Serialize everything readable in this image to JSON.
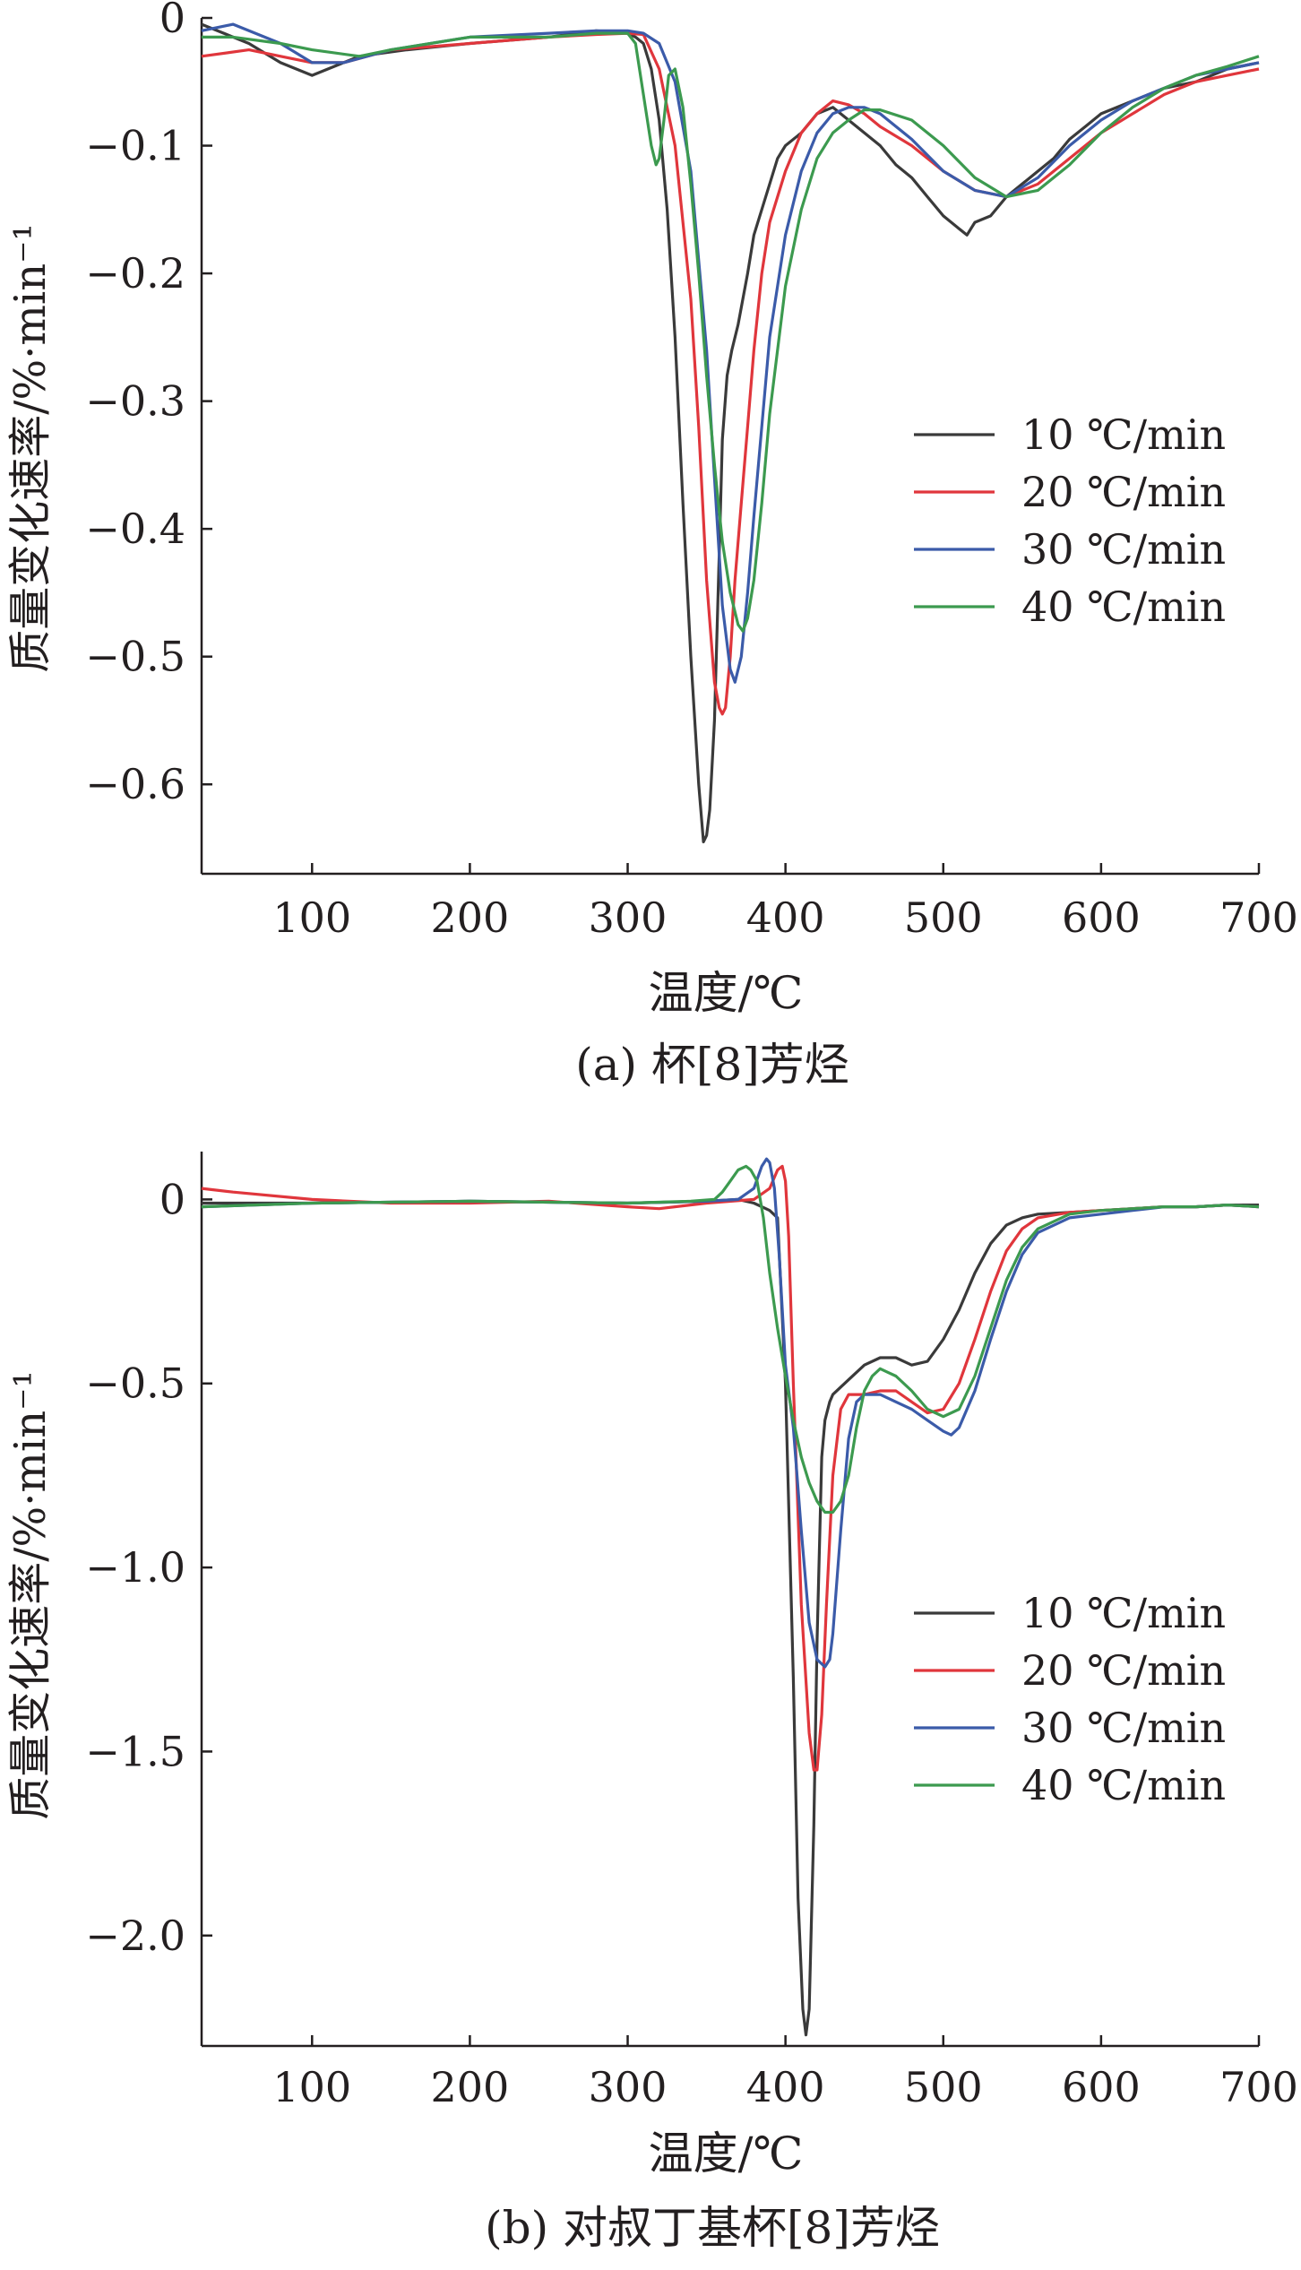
{
  "chart_data": [
    {
      "type": "line",
      "caption": "(a) 杯[8]芳烃",
      "xlabel": "温度/℃",
      "ylabel": "质量变化速率/%·min⁻¹",
      "xlim": [
        30,
        700
      ],
      "ylim": [
        -0.67,
        0.0
      ],
      "xticks": [
        100,
        200,
        300,
        400,
        500,
        600,
        700
      ],
      "xtick_labels": [
        "100",
        "200",
        "300",
        "400",
        "500",
        "600",
        "700"
      ],
      "yticks": [
        0,
        -0.1,
        -0.2,
        -0.3,
        -0.4,
        -0.5,
        -0.6
      ],
      "ytick_labels": [
        "0",
        "−0.1",
        "−0.2",
        "−0.3",
        "−0.4",
        "−0.5",
        "−0.6"
      ],
      "legend_position": "right-middle",
      "series": [
        {
          "name": "10 ℃/min",
          "color": "#3a3a3a",
          "x": [
            30,
            60,
            80,
            100,
            110,
            130,
            160,
            200,
            250,
            280,
            300,
            305,
            310,
            315,
            320,
            325,
            330,
            335,
            340,
            345,
            348,
            350,
            352,
            355,
            358,
            360,
            363,
            366,
            370,
            373,
            376,
            380,
            385,
            390,
            395,
            400,
            410,
            420,
            430,
            440,
            450,
            460,
            470,
            480,
            490,
            500,
            510,
            515,
            520,
            530,
            540,
            550,
            560,
            570,
            580,
            590,
            600,
            620,
            640,
            660,
            680,
            700
          ],
          "y": [
            -0.005,
            -0.02,
            -0.035,
            -0.045,
            -0.04,
            -0.03,
            -0.025,
            -0.02,
            -0.015,
            -0.01,
            -0.012,
            -0.015,
            -0.02,
            -0.04,
            -0.08,
            -0.15,
            -0.25,
            -0.38,
            -0.5,
            -0.6,
            -0.645,
            -0.64,
            -0.62,
            -0.55,
            -0.42,
            -0.33,
            -0.28,
            -0.26,
            -0.24,
            -0.22,
            -0.2,
            -0.17,
            -0.15,
            -0.13,
            -0.11,
            -0.1,
            -0.09,
            -0.075,
            -0.07,
            -0.08,
            -0.09,
            -0.1,
            -0.115,
            -0.125,
            -0.14,
            -0.155,
            -0.165,
            -0.17,
            -0.16,
            -0.155,
            -0.14,
            -0.13,
            -0.12,
            -0.11,
            -0.095,
            -0.085,
            -0.075,
            -0.065,
            -0.055,
            -0.05,
            -0.04,
            -0.035
          ]
        },
        {
          "name": "20 ℃/min",
          "color": "#e0363c",
          "x": [
            30,
            60,
            80,
            100,
            120,
            150,
            200,
            250,
            280,
            300,
            310,
            320,
            330,
            340,
            345,
            350,
            355,
            358,
            360,
            362,
            365,
            368,
            372,
            376,
            380,
            385,
            390,
            400,
            410,
            420,
            430,
            440,
            450,
            460,
            480,
            500,
            520,
            540,
            560,
            580,
            600,
            620,
            640,
            660,
            680,
            700
          ],
          "y": [
            -0.03,
            -0.025,
            -0.03,
            -0.035,
            -0.035,
            -0.025,
            -0.02,
            -0.015,
            -0.013,
            -0.012,
            -0.013,
            -0.04,
            -0.1,
            -0.22,
            -0.32,
            -0.44,
            -0.52,
            -0.54,
            -0.545,
            -0.54,
            -0.5,
            -0.44,
            -0.38,
            -0.32,
            -0.26,
            -0.2,
            -0.16,
            -0.12,
            -0.09,
            -0.075,
            -0.065,
            -0.068,
            -0.075,
            -0.085,
            -0.1,
            -0.12,
            -0.135,
            -0.14,
            -0.13,
            -0.11,
            -0.09,
            -0.075,
            -0.06,
            -0.05,
            -0.045,
            -0.04
          ]
        },
        {
          "name": "30 ℃/min",
          "color": "#3b5ba9",
          "x": [
            30,
            50,
            80,
            100,
            120,
            150,
            200,
            250,
            280,
            300,
            310,
            320,
            330,
            340,
            350,
            355,
            360,
            365,
            368,
            372,
            376,
            380,
            385,
            390,
            400,
            410,
            420,
            430,
            440,
            450,
            460,
            480,
            500,
            520,
            540,
            560,
            580,
            600,
            620,
            640,
            660,
            680,
            700
          ],
          "y": [
            -0.01,
            -0.005,
            -0.02,
            -0.035,
            -0.035,
            -0.025,
            -0.015,
            -0.012,
            -0.01,
            -0.01,
            -0.012,
            -0.02,
            -0.05,
            -0.12,
            -0.26,
            -0.36,
            -0.46,
            -0.51,
            -0.52,
            -0.5,
            -0.45,
            -0.39,
            -0.32,
            -0.25,
            -0.17,
            -0.12,
            -0.09,
            -0.075,
            -0.07,
            -0.07,
            -0.075,
            -0.095,
            -0.12,
            -0.135,
            -0.14,
            -0.125,
            -0.1,
            -0.08,
            -0.065,
            -0.055,
            -0.045,
            -0.04,
            -0.035
          ]
        },
        {
          "name": "40 ℃/min",
          "color": "#3c9a4f",
          "x": [
            30,
            50,
            80,
            100,
            130,
            150,
            200,
            250,
            280,
            300,
            305,
            310,
            315,
            318,
            320,
            323,
            326,
            330,
            335,
            340,
            345,
            350,
            355,
            360,
            365,
            370,
            373,
            376,
            380,
            385,
            390,
            400,
            410,
            420,
            430,
            440,
            450,
            460,
            480,
            500,
            520,
            540,
            560,
            580,
            600,
            620,
            640,
            660,
            680,
            700
          ],
          "y": [
            -0.015,
            -0.015,
            -0.02,
            -0.025,
            -0.03,
            -0.025,
            -0.015,
            -0.015,
            -0.012,
            -0.012,
            -0.02,
            -0.06,
            -0.1,
            -0.115,
            -0.11,
            -0.08,
            -0.045,
            -0.04,
            -0.07,
            -0.13,
            -0.2,
            -0.28,
            -0.35,
            -0.41,
            -0.45,
            -0.475,
            -0.48,
            -0.47,
            -0.44,
            -0.38,
            -0.31,
            -0.21,
            -0.15,
            -0.11,
            -0.09,
            -0.08,
            -0.072,
            -0.072,
            -0.08,
            -0.1,
            -0.125,
            -0.14,
            -0.135,
            -0.115,
            -0.09,
            -0.07,
            -0.055,
            -0.045,
            -0.038,
            -0.03
          ]
        }
      ]
    },
    {
      "type": "line",
      "caption": "(b) 对叔丁基杯[8]芳烃",
      "xlabel": "温度/℃",
      "ylabel": "质量变化速率/%·min⁻¹",
      "xlim": [
        30,
        700
      ],
      "ylim": [
        -2.3,
        0.13
      ],
      "xticks": [
        100,
        200,
        300,
        400,
        500,
        600,
        700
      ],
      "xtick_labels": [
        "100",
        "200",
        "300",
        "400",
        "500",
        "600",
        "700"
      ],
      "yticks": [
        0,
        -0.5,
        -1.0,
        -1.5,
        -2.0
      ],
      "ytick_labels": [
        "0",
        "−0.5",
        "−1.0",
        "−1.5",
        "−2.0"
      ],
      "legend_position": "right-middle",
      "series": [
        {
          "name": "10 ℃/min",
          "color": "#3a3a3a",
          "x": [
            30,
            100,
            200,
            300,
            350,
            370,
            380,
            385,
            390,
            395,
            400,
            405,
            408,
            411,
            413,
            415,
            418,
            420,
            423,
            425,
            428,
            430,
            440,
            450,
            460,
            470,
            480,
            490,
            500,
            510,
            520,
            530,
            540,
            550,
            560,
            580,
            600,
            620,
            640,
            660,
            680,
            700
          ],
          "y": [
            -0.01,
            -0.01,
            -0.005,
            -0.01,
            -0.005,
            0.0,
            -0.01,
            -0.02,
            -0.03,
            -0.05,
            -0.5,
            -1.3,
            -1.9,
            -2.2,
            -2.27,
            -2.2,
            -1.7,
            -1.2,
            -0.7,
            -0.6,
            -0.55,
            -0.53,
            -0.49,
            -0.45,
            -0.43,
            -0.43,
            -0.45,
            -0.44,
            -0.38,
            -0.3,
            -0.2,
            -0.12,
            -0.07,
            -0.05,
            -0.04,
            -0.035,
            -0.03,
            -0.025,
            -0.02,
            -0.02,
            -0.015,
            -0.015
          ]
        },
        {
          "name": "20 ℃/min",
          "color": "#e0363c",
          "x": [
            30,
            50,
            100,
            150,
            200,
            250,
            300,
            320,
            350,
            380,
            390,
            395,
            398,
            400,
            402,
            405,
            410,
            415,
            418,
            420,
            423,
            426,
            430,
            435,
            440,
            450,
            460,
            470,
            480,
            490,
            500,
            510,
            520,
            530,
            540,
            550,
            560,
            580,
            600,
            620,
            640,
            660,
            680,
            700
          ],
          "y": [
            0.03,
            0.02,
            0.0,
            -0.01,
            -0.01,
            -0.005,
            -0.02,
            -0.025,
            -0.01,
            0.0,
            0.03,
            0.08,
            0.09,
            0.05,
            -0.1,
            -0.5,
            -1.1,
            -1.45,
            -1.55,
            -1.55,
            -1.4,
            -1.1,
            -0.75,
            -0.57,
            -0.53,
            -0.53,
            -0.52,
            -0.52,
            -0.55,
            -0.58,
            -0.57,
            -0.5,
            -0.38,
            -0.25,
            -0.14,
            -0.08,
            -0.05,
            -0.035,
            -0.03,
            -0.025,
            -0.02,
            -0.02,
            -0.015,
            -0.02
          ]
        },
        {
          "name": "30 ℃/min",
          "color": "#3b5ba9",
          "x": [
            30,
            100,
            200,
            300,
            350,
            370,
            380,
            385,
            388,
            390,
            393,
            396,
            400,
            405,
            410,
            415,
            420,
            425,
            428,
            430,
            435,
            440,
            445,
            450,
            460,
            470,
            480,
            490,
            500,
            505,
            510,
            520,
            530,
            540,
            550,
            560,
            580,
            600,
            620,
            640,
            660,
            680,
            700
          ],
          "y": [
            -0.02,
            -0.01,
            -0.005,
            -0.01,
            -0.005,
            0.0,
            0.03,
            0.09,
            0.11,
            0.1,
            0.03,
            -0.15,
            -0.45,
            -0.62,
            -0.9,
            -1.15,
            -1.25,
            -1.27,
            -1.25,
            -1.18,
            -0.9,
            -0.65,
            -0.55,
            -0.53,
            -0.53,
            -0.55,
            -0.57,
            -0.6,
            -0.63,
            -0.64,
            -0.62,
            -0.52,
            -0.38,
            -0.25,
            -0.15,
            -0.09,
            -0.05,
            -0.04,
            -0.03,
            -0.02,
            -0.02,
            -0.015,
            -0.02
          ]
        },
        {
          "name": "40 ℃/min",
          "color": "#3c9a4f",
          "x": [
            30,
            100,
            200,
            300,
            340,
            355,
            360,
            365,
            370,
            375,
            378,
            382,
            386,
            390,
            395,
            400,
            405,
            410,
            415,
            420,
            425,
            430,
            435,
            440,
            445,
            450,
            455,
            460,
            465,
            470,
            480,
            490,
            500,
            510,
            520,
            530,
            540,
            550,
            560,
            580,
            600,
            620,
            640,
            660,
            680,
            700
          ],
          "y": [
            -0.02,
            -0.01,
            -0.005,
            -0.01,
            -0.005,
            0.0,
            0.02,
            0.05,
            0.08,
            0.09,
            0.08,
            0.05,
            -0.05,
            -0.2,
            -0.35,
            -0.48,
            -0.6,
            -0.7,
            -0.77,
            -0.82,
            -0.85,
            -0.85,
            -0.82,
            -0.75,
            -0.62,
            -0.52,
            -0.48,
            -0.46,
            -0.47,
            -0.48,
            -0.52,
            -0.57,
            -0.59,
            -0.57,
            -0.48,
            -0.35,
            -0.22,
            -0.13,
            -0.08,
            -0.04,
            -0.03,
            -0.025,
            -0.02,
            -0.02,
            -0.015,
            -0.02
          ]
        }
      ]
    }
  ]
}
